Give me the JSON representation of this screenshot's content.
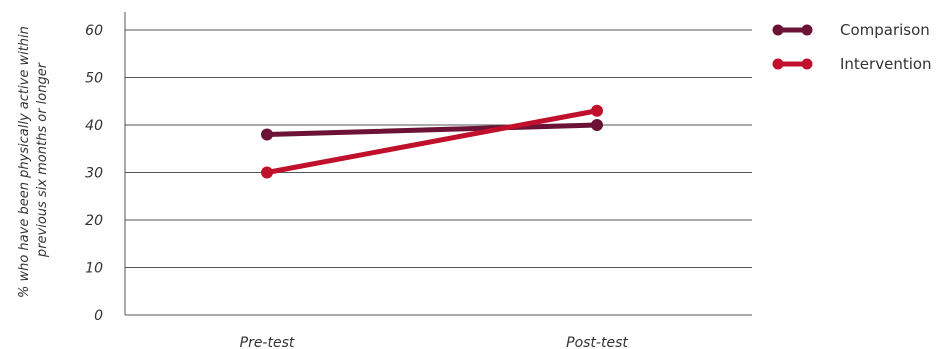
{
  "chart_data": {
    "type": "line",
    "categories": [
      "Pre-test",
      "Post-test"
    ],
    "series": [
      {
        "name": "Comparison",
        "values": [
          38,
          40
        ],
        "color": "#6b1236"
      },
      {
        "name": "Intervention",
        "values": [
          30,
          43
        ],
        "color": "#c0102c"
      }
    ],
    "title": "",
    "xlabel": "",
    "ylabel_lines": [
      "% who have been physically active within",
      "previous six months or longer"
    ],
    "ylim": [
      0,
      60
    ],
    "yticks": [
      0,
      10,
      20,
      30,
      40,
      50,
      60
    ],
    "grid": true,
    "legend_position": "top-right"
  }
}
